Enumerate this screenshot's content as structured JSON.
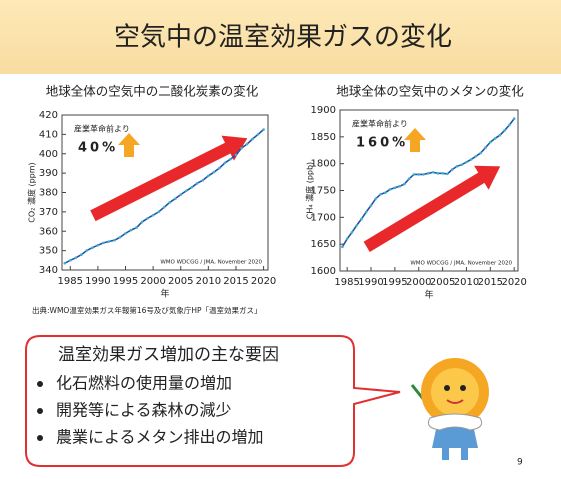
{
  "slide_title": "空気中の温室効果ガスの変化",
  "chart_data": [
    {
      "type": "line",
      "title": "地球全体の空気中の二酸化炭素の変化",
      "y_label": "CO₂ 濃度 (ppm)",
      "x_label": "年",
      "annotation": "産業革命前より",
      "increase": "40%",
      "credit": "WMO WDCGG / JMA, November 2020",
      "x": [
        1984,
        1985,
        1986,
        1987,
        1988,
        1989,
        1990,
        1991,
        1992,
        1993,
        1994,
        1995,
        1996,
        1997,
        1998,
        1999,
        2000,
        2001,
        2002,
        2003,
        2004,
        2005,
        2006,
        2007,
        2008,
        2009,
        2010,
        2011,
        2012,
        2013,
        2014,
        2015,
        2016,
        2017,
        2018,
        2019,
        2020
      ],
      "series": [
        {
          "color": "#2b4fa8",
          "values": [
            343.5,
            345.0,
            346.3,
            347.9,
            350.1,
            351.5,
            352.8,
            354.0,
            354.7,
            355.4,
            356.9,
            358.9,
            360.6,
            361.9,
            364.8,
            366.7,
            368.3,
            370.0,
            372.4,
            374.9,
            376.8,
            378.9,
            380.9,
            382.7,
            384.8,
            386.3,
            388.6,
            390.5,
            392.6,
            395.3,
            397.2,
            399.4,
            402.9,
            405.0,
            407.6,
            410.0,
            412.5
          ]
        }
      ],
      "xlim": [
        1983.5,
        2020.8
      ],
      "xticks": [
        1985,
        1990,
        1995,
        2000,
        2005,
        2010,
        2015,
        2020
      ],
      "ylim": [
        340,
        420
      ],
      "yticks": [
        340,
        350,
        360,
        370,
        380,
        390,
        400,
        410,
        420
      ]
    },
    {
      "type": "line",
      "title": "地球全体の空気中のメタンの変化",
      "y_label": "CH₄ 濃度 (ppb)",
      "x_label": "年",
      "annotation": "産業革命前より",
      "increase": "160%",
      "credit": "WMO WDCGG / JMA, November 2020",
      "x": [
        1984,
        1985,
        1986,
        1987,
        1988,
        1989,
        1990,
        1991,
        1992,
        1993,
        1994,
        1995,
        1996,
        1997,
        1998,
        1999,
        2000,
        2001,
        2002,
        2003,
        2004,
        2005,
        2006,
        2007,
        2008,
        2009,
        2010,
        2011,
        2012,
        2013,
        2014,
        2015,
        2016,
        2017,
        2018,
        2019,
        2020
      ],
      "series": [
        {
          "color": "#2b4fa8",
          "values": [
            1645,
            1660,
            1672,
            1685,
            1697,
            1710,
            1722,
            1735,
            1743,
            1746,
            1752,
            1755,
            1758,
            1762,
            1772,
            1780,
            1780,
            1780,
            1782,
            1784,
            1782,
            1782,
            1781,
            1789,
            1795,
            1798,
            1803,
            1808,
            1814,
            1820,
            1830,
            1840,
            1847,
            1853,
            1862,
            1872,
            1884
          ]
        }
      ],
      "xlim": [
        1983.5,
        2020.8
      ],
      "xticks": [
        1985,
        1990,
        1995,
        2000,
        2005,
        2010,
        2015,
        2020
      ],
      "ylim": [
        1600,
        1900
      ],
      "yticks": [
        1600,
        1650,
        1700,
        1750,
        1800,
        1850,
        1900
      ]
    }
  ],
  "source": "出典:WMO温室効果ガス年報第16号及び気象庁HP「温室効果ガス」",
  "callout": {
    "heading": "温室効果ガス増加の主な要因",
    "items": [
      "化石燃料の使用量の増加",
      "開発等による森林の減少",
      "農業によるメタン排出の増加"
    ]
  },
  "page_number": "9"
}
